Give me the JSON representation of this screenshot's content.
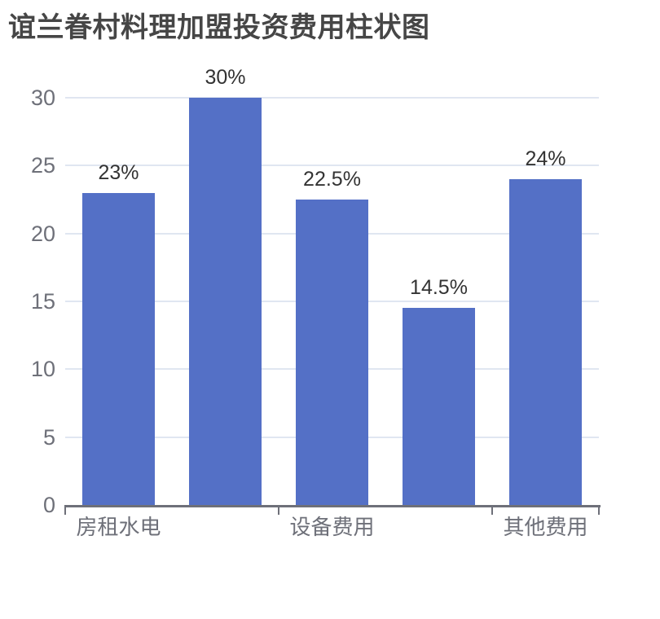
{
  "chart_data": {
    "type": "bar",
    "title": "谊兰眷村料理加盟投资费用柱状图",
    "categories": [
      "房租水电",
      "",
      "设备费用",
      "",
      "其他费用"
    ],
    "values": [
      23,
      30,
      22.5,
      14.5,
      24
    ],
    "value_labels": [
      "23%",
      "30%",
      "22.5%",
      "14.5%",
      "24%"
    ],
    "ylabel": "",
    "xlabel": "",
    "ylim": [
      0,
      30
    ],
    "yticks": [
      0,
      5,
      10,
      15,
      20,
      25,
      30
    ],
    "grid": true,
    "legend_position": "none",
    "colors": {
      "bar": "#5470C6",
      "gridline": "#E0E6F1",
      "axis_line": "#6E7079",
      "axis_label": "#6E7079",
      "value_label": "#333333",
      "title": "#464646",
      "background": "#ffffff"
    }
  }
}
